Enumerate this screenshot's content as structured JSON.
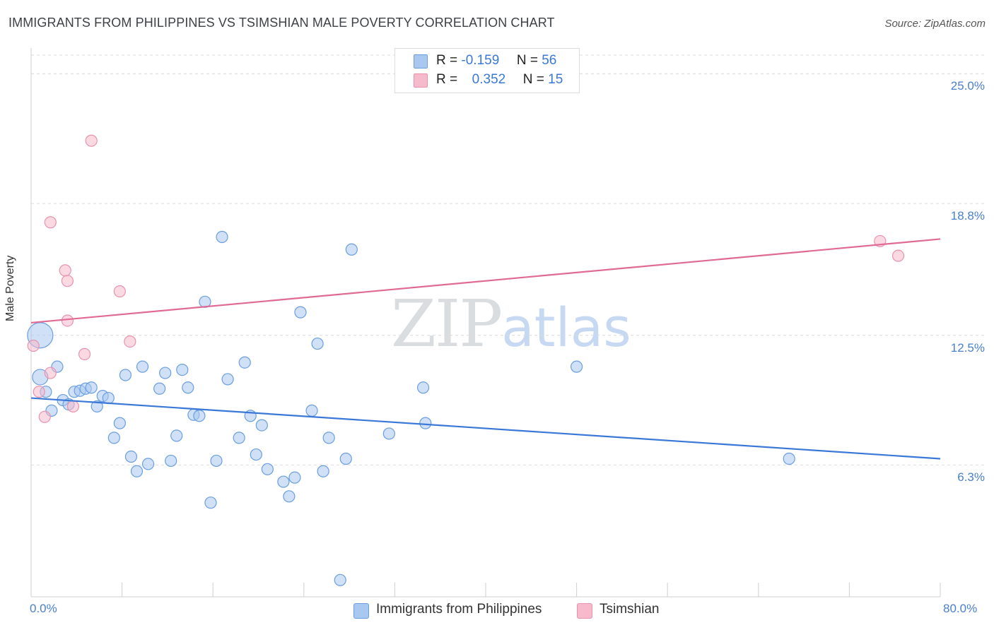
{
  "header": {
    "title": "IMMIGRANTS FROM PHILIPPINES VS TSIMSHIAN MALE POVERTY CORRELATION CHART",
    "source": "Source: ZipAtlas.com"
  },
  "watermark": {
    "zip": "ZIP",
    "atlas": "atlas"
  },
  "legend_top": {
    "rows": [
      {
        "r_label": "R =",
        "r_value": "-0.159",
        "n_label": "N =",
        "n_value": "56",
        "color": "#a9c8f0"
      },
      {
        "r_label": "R =",
        "r_value": "0.352",
        "n_label": "N =",
        "n_value": "15",
        "color": "#f7b9cc"
      }
    ]
  },
  "legend_bottom": [
    {
      "label": "Immigrants from Philippines",
      "color": "#a9c8f0"
    },
    {
      "label": "Tsimshian",
      "color": "#f7b9cc"
    }
  ],
  "chart_data": {
    "type": "scatter",
    "title": "IMMIGRANTS FROM PHILIPPINES VS TSIMSHIAN MALE POVERTY CORRELATION CHART",
    "xlabel": "",
    "ylabel": "Male Poverty",
    "xlim": [
      0,
      80
    ],
    "ylim": [
      0,
      26.5
    ],
    "x_tick_labels": [
      "0.0%",
      "80.0%"
    ],
    "y_ticks": [
      6.3,
      12.5,
      18.8,
      25.0
    ],
    "y_tick_labels": [
      "6.3%",
      "12.5%",
      "18.8%",
      "25.0%"
    ],
    "grid": true,
    "series": [
      {
        "name": "Immigrants from Philippines",
        "color": "#a9c8f0",
        "stroke": "#6a9ee0",
        "trend_color": "#3a78d8",
        "trend": {
          "x0": 0,
          "y0": 9.5,
          "x1": 80,
          "y1": 6.6
        },
        "points": [
          [
            0.8,
            12.5
          ],
          [
            0.8,
            10.5
          ],
          [
            1.3,
            9.8
          ],
          [
            1.8,
            8.9
          ],
          [
            2.3,
            11.0
          ],
          [
            2.8,
            9.4
          ],
          [
            3.3,
            9.2
          ],
          [
            3.8,
            9.8
          ],
          [
            4.3,
            9.85
          ],
          [
            4.8,
            9.95
          ],
          [
            5.3,
            10.0
          ],
          [
            5.8,
            9.1
          ],
          [
            6.3,
            9.6
          ],
          [
            6.8,
            9.5
          ],
          [
            7.3,
            7.6
          ],
          [
            7.8,
            8.3
          ],
          [
            8.3,
            10.6
          ],
          [
            8.8,
            6.7
          ],
          [
            9.3,
            6.0
          ],
          [
            9.8,
            11.0
          ],
          [
            10.3,
            6.35
          ],
          [
            11.3,
            9.95
          ],
          [
            11.8,
            10.7
          ],
          [
            12.3,
            6.5
          ],
          [
            12.8,
            7.7
          ],
          [
            13.3,
            10.85
          ],
          [
            13.8,
            10.0
          ],
          [
            14.3,
            8.7
          ],
          [
            14.8,
            8.65
          ],
          [
            15.3,
            14.1
          ],
          [
            15.8,
            4.5
          ],
          [
            16.3,
            6.5
          ],
          [
            16.8,
            17.2
          ],
          [
            17.3,
            10.4
          ],
          [
            18.3,
            7.6
          ],
          [
            18.8,
            11.2
          ],
          [
            19.3,
            8.65
          ],
          [
            19.8,
            6.8
          ],
          [
            20.3,
            8.2
          ],
          [
            20.8,
            6.1
          ],
          [
            22.2,
            5.5
          ],
          [
            22.7,
            4.8
          ],
          [
            23.2,
            5.7
          ],
          [
            23.7,
            13.6
          ],
          [
            24.7,
            8.9
          ],
          [
            25.2,
            12.1
          ],
          [
            25.7,
            6.0
          ],
          [
            26.2,
            7.6
          ],
          [
            27.2,
            0.8
          ],
          [
            27.7,
            6.6
          ],
          [
            28.2,
            16.6
          ],
          [
            31.5,
            7.8
          ],
          [
            34.5,
            10.0
          ],
          [
            34.7,
            8.3
          ],
          [
            48.0,
            11.0
          ],
          [
            66.7,
            6.6
          ]
        ],
        "radii": [
          18,
          11,
          8,
          8,
          8,
          8,
          8,
          8,
          8,
          8,
          8,
          8,
          8,
          8,
          8,
          8,
          8,
          8,
          8,
          8,
          8,
          8,
          8,
          8,
          8,
          8,
          8,
          8,
          8,
          8,
          8,
          8,
          8,
          8,
          8,
          8,
          8,
          8,
          8,
          8,
          8,
          8,
          8,
          8,
          8,
          8,
          8,
          8,
          8,
          8,
          8,
          8,
          8,
          8,
          8,
          8
        ]
      },
      {
        "name": "Tsimshian",
        "color": "#f7b9cc",
        "stroke": "#e793ae",
        "trend_color": "#e06a93",
        "trend": {
          "x0": 0,
          "y0": 13.1,
          "x1": 80,
          "y1": 17.1
        },
        "points": [
          [
            0.2,
            12.0
          ],
          [
            0.7,
            9.8
          ],
          [
            1.2,
            8.6
          ],
          [
            1.7,
            10.7
          ],
          [
            1.7,
            17.9
          ],
          [
            3.2,
            13.2
          ],
          [
            3.0,
            15.6
          ],
          [
            3.2,
            15.1
          ],
          [
            3.7,
            9.1
          ],
          [
            4.7,
            11.6
          ],
          [
            5.3,
            21.8
          ],
          [
            7.8,
            14.6
          ],
          [
            8.7,
            12.2
          ],
          [
            74.7,
            17.0
          ],
          [
            76.3,
            16.3
          ]
        ],
        "radii": [
          8,
          8,
          8,
          8,
          8,
          8,
          8,
          8,
          8,
          8,
          8,
          8,
          8,
          8,
          8
        ]
      }
    ]
  }
}
